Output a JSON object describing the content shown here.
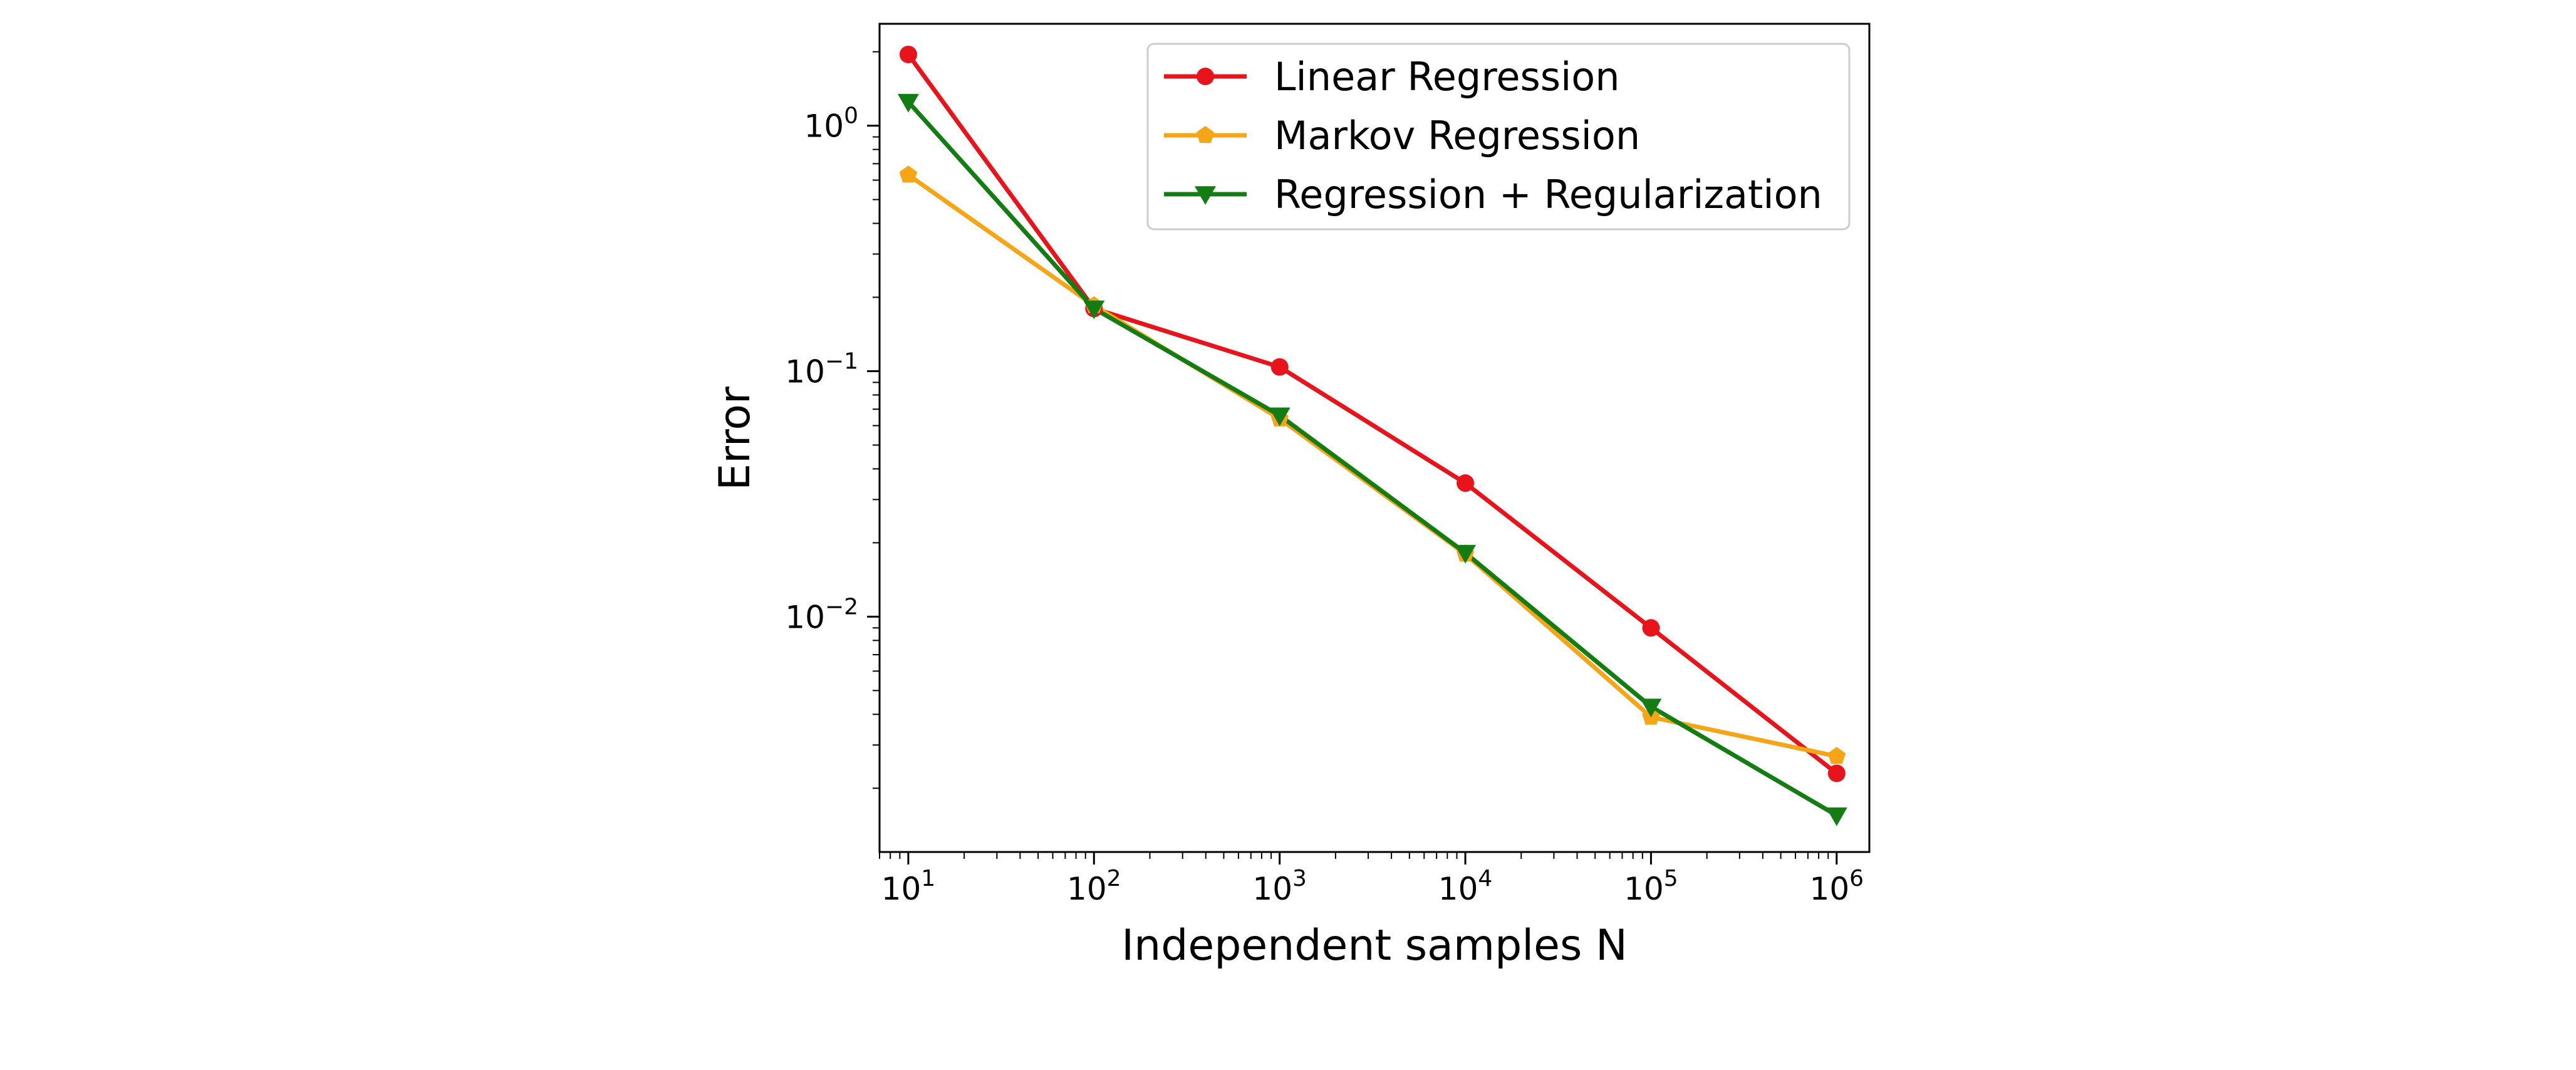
{
  "chart_data": {
    "type": "line",
    "xlabel": "Independent samples N",
    "ylabel": "Error",
    "xscale": "log",
    "yscale": "log",
    "xlim": [
      7,
      1500000
    ],
    "ylim": [
      0.0011,
      2.6
    ],
    "x_ticks": [
      {
        "base": "10",
        "exp": "1",
        "value": 10
      },
      {
        "base": "10",
        "exp": "2",
        "value": 100
      },
      {
        "base": "10",
        "exp": "3",
        "value": 1000
      },
      {
        "base": "10",
        "exp": "4",
        "value": 10000
      },
      {
        "base": "10",
        "exp": "5",
        "value": 100000
      },
      {
        "base": "10",
        "exp": "6",
        "value": 1000000
      }
    ],
    "y_ticks": [
      {
        "base": "10",
        "exp": "0",
        "value": 1
      },
      {
        "base": "10",
        "exp": "−1",
        "value": 0.1
      },
      {
        "base": "10",
        "exp": "−2",
        "value": 0.01
      }
    ],
    "x": [
      10,
      100,
      1000,
      10000,
      100000,
      1000000
    ],
    "series": [
      {
        "name": "Linear Regression",
        "color": "#e8141c",
        "marker": "circle",
        "values": [
          1.95,
          0.18,
          0.104,
          0.035,
          0.009,
          0.0023
        ]
      },
      {
        "name": "Markov Regression",
        "color": "#f5a515",
        "marker": "pentagon",
        "values": [
          0.63,
          0.185,
          0.064,
          0.018,
          0.0039,
          0.0027
        ]
      },
      {
        "name": "Regression + Regularization",
        "color": "#137d13",
        "marker": "triangle-down",
        "values": [
          1.25,
          0.18,
          0.066,
          0.0182,
          0.0043,
          0.00155
        ]
      }
    ],
    "legend_position": "upper-right",
    "grid": false
  }
}
